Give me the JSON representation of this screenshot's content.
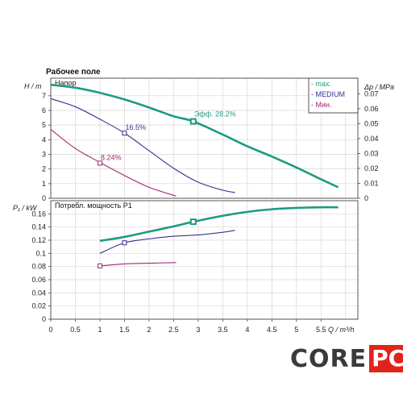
{
  "chart_data": [
    {
      "type": "line",
      "panel": "head",
      "title": "Рабочее поле",
      "ylabel": "H / m",
      "ylabel_right": "Δp / MPa",
      "xlim": [
        0,
        6.25
      ],
      "ylim": [
        0,
        8.2
      ],
      "yticks": [
        0,
        1,
        2,
        3,
        4,
        5,
        6,
        7
      ],
      "yticks_right": [
        "0",
        "0.01",
        "0.02",
        "0.03",
        "0.04",
        "0.05",
        "0.06",
        "0.07"
      ],
      "grid": true,
      "legend_position": "top-right",
      "panel_label": "Напор",
      "series": [
        {
          "name": "- max.",
          "color": "#1e9a82",
          "width": 2.6,
          "x": [
            0,
            0.5,
            1.0,
            1.5,
            2.0,
            2.5,
            2.9,
            3.5,
            4.0,
            4.5,
            5.0,
            5.5,
            5.85
          ],
          "y": [
            7.75,
            7.55,
            7.2,
            6.75,
            6.2,
            5.6,
            5.25,
            4.35,
            3.55,
            2.85,
            2.1,
            1.3,
            0.75
          ]
        },
        {
          "name": "- MEDIUM",
          "color": "#3b2f8f",
          "width": 1.1,
          "x": [
            0,
            0.5,
            1.0,
            1.5,
            2.0,
            2.5,
            3.0,
            3.5,
            3.75
          ],
          "y": [
            6.8,
            6.25,
            5.4,
            4.45,
            3.25,
            2.05,
            1.1,
            0.55,
            0.4
          ]
        },
        {
          "name": "- Мин.",
          "color": "#a0256e",
          "width": 1.1,
          "x": [
            0,
            0.5,
            1.0,
            1.5,
            2.0,
            2.55
          ],
          "y": [
            4.7,
            3.4,
            2.45,
            1.55,
            0.75,
            0.15
          ]
        }
      ],
      "markers": [
        {
          "x": 2.9,
          "y": 5.25,
          "color": "#1e9a82",
          "label": "Эфф.  28.2%"
        },
        {
          "x": 1.5,
          "y": 4.45,
          "color": "#3b2f8f",
          "label": "16.5%"
        },
        {
          "x": 1.0,
          "y": 2.4,
          "color": "#a0256e",
          "label": "8.24%"
        }
      ]
    },
    {
      "type": "line",
      "panel": "power",
      "ylabel": "P₁ / kW",
      "xlabel": "Q / m³/h",
      "panel_label": "Потребл. мощность P1",
      "xlim": [
        0,
        6.25
      ],
      "ylim": [
        0,
        0.18
      ],
      "xticks": [
        0,
        0.5,
        1,
        1.5,
        2,
        2.5,
        3,
        3.5,
        4,
        4.5,
        5,
        5.5
      ],
      "xtick_labels": [
        "0",
        "0.5",
        "1",
        "1.5",
        "2",
        "2.5",
        "3",
        "3.5",
        "4",
        "4.5",
        "5",
        "5.5"
      ],
      "yticks": [
        0,
        0.02,
        0.04,
        0.06,
        0.08,
        0.1,
        0.12,
        0.14,
        0.16
      ],
      "ytick_labels": [
        "0",
        "0.02",
        "0.04",
        "0.06",
        "0.08",
        "0.1",
        "0.12",
        "0.14",
        "0.16"
      ],
      "grid": true,
      "series": [
        {
          "name": "max.",
          "color": "#1e9a82",
          "width": 2.6,
          "x": [
            1.0,
            1.5,
            2.0,
            2.5,
            2.9,
            3.5,
            4.0,
            4.5,
            5.0,
            5.5,
            5.85
          ],
          "y": [
            0.119,
            0.125,
            0.133,
            0.141,
            0.148,
            0.157,
            0.163,
            0.167,
            0.169,
            0.17,
            0.17
          ]
        },
        {
          "name": "MEDIUM",
          "color": "#3b2f8f",
          "width": 1.1,
          "x": [
            1.0,
            1.5,
            2.0,
            2.5,
            3.0,
            3.5,
            3.75
          ],
          "y": [
            0.1,
            0.116,
            0.122,
            0.126,
            0.128,
            0.132,
            0.135
          ]
        },
        {
          "name": "Мин.",
          "color": "#a0256e",
          "width": 1.1,
          "x": [
            1.0,
            1.5,
            2.0,
            2.55
          ],
          "y": [
            0.081,
            0.084,
            0.085,
            0.086
          ]
        }
      ],
      "markers": [
        {
          "x": 2.9,
          "y": 0.148,
          "color": "#1e9a82"
        },
        {
          "x": 1.5,
          "y": 0.116,
          "color": "#3b2f8f"
        },
        {
          "x": 1.0,
          "y": 0.081,
          "color": "#a0256e"
        }
      ]
    }
  ],
  "logo": {
    "part1": "CORE",
    "part2": "PC"
  }
}
